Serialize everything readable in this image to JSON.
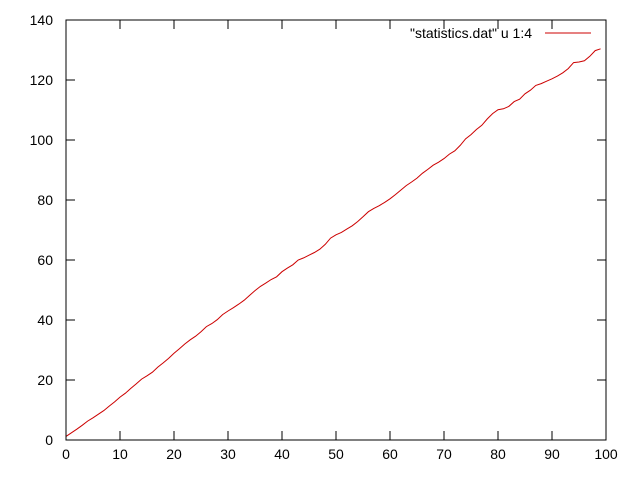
{
  "chart_data": {
    "type": "line",
    "title": "",
    "xlabel": "",
    "ylabel": "",
    "xlim": [
      0,
      100
    ],
    "ylim": [
      0,
      140
    ],
    "x_ticks": [
      "0",
      "10",
      "20",
      "30",
      "40",
      "50",
      "60",
      "70",
      "80",
      "90",
      "100"
    ],
    "y_ticks": [
      "0",
      "20",
      "40",
      "60",
      "80",
      "100",
      "120",
      "140"
    ],
    "grid": false,
    "legend_position": "top-right",
    "series": [
      {
        "name": "\"statistics.dat\" u 1:4",
        "color": "#cc0000",
        "x": [
          0,
          1,
          2,
          3,
          4,
          5,
          6,
          7,
          8,
          9,
          10,
          11,
          12,
          13,
          14,
          15,
          16,
          17,
          18,
          19,
          20,
          21,
          22,
          23,
          24,
          25,
          26,
          27,
          28,
          29,
          30,
          31,
          32,
          33,
          34,
          35,
          36,
          37,
          38,
          39,
          40,
          41,
          42,
          43,
          44,
          45,
          46,
          47,
          48,
          49,
          50,
          51,
          52,
          53,
          54,
          55,
          56,
          57,
          58,
          59,
          60,
          61,
          62,
          63,
          64,
          65,
          66,
          67,
          68,
          69,
          70,
          71,
          72,
          73,
          74,
          75,
          76,
          77,
          78,
          79,
          80,
          81,
          82,
          83,
          84,
          85,
          86,
          87,
          88,
          89,
          90,
          91,
          92,
          93,
          94,
          95,
          96,
          97,
          98,
          99
        ],
        "values": [
          1.2,
          2.4,
          3.6,
          4.9,
          6.3,
          7.4,
          8.6,
          9.8,
          11.3,
          12.7,
          14.3,
          15.6,
          17.2,
          18.7,
          20.3,
          21.4,
          22.6,
          24.3,
          25.7,
          27.2,
          28.9,
          30.4,
          32.0,
          33.4,
          34.6,
          36.1,
          37.8,
          38.8,
          40.1,
          41.8,
          43.0,
          44.1,
          45.3,
          46.6,
          48.2,
          49.8,
          51.2,
          52.3,
          53.5,
          54.4,
          56.1,
          57.3,
          58.4,
          60.0,
          60.7,
          61.6,
          62.5,
          63.6,
          65.2,
          67.3,
          68.4,
          69.2,
          70.3,
          71.4,
          72.8,
          74.4,
          76.1,
          77.2,
          78.1,
          79.2,
          80.4,
          81.8,
          83.3,
          84.8,
          86.0,
          87.3,
          88.9,
          90.2,
          91.6,
          92.6,
          93.8,
          95.3,
          96.4,
          98.2,
          100.4,
          101.8,
          103.5,
          104.9,
          107.0,
          108.8,
          110.1,
          110.4,
          111.2,
          112.8,
          113.6,
          115.4,
          116.6,
          118.2,
          118.8,
          119.6,
          120.4,
          121.3,
          122.4,
          123.8,
          125.8,
          126.0,
          126.4,
          127.9,
          129.8,
          130.4
        ]
      }
    ]
  }
}
